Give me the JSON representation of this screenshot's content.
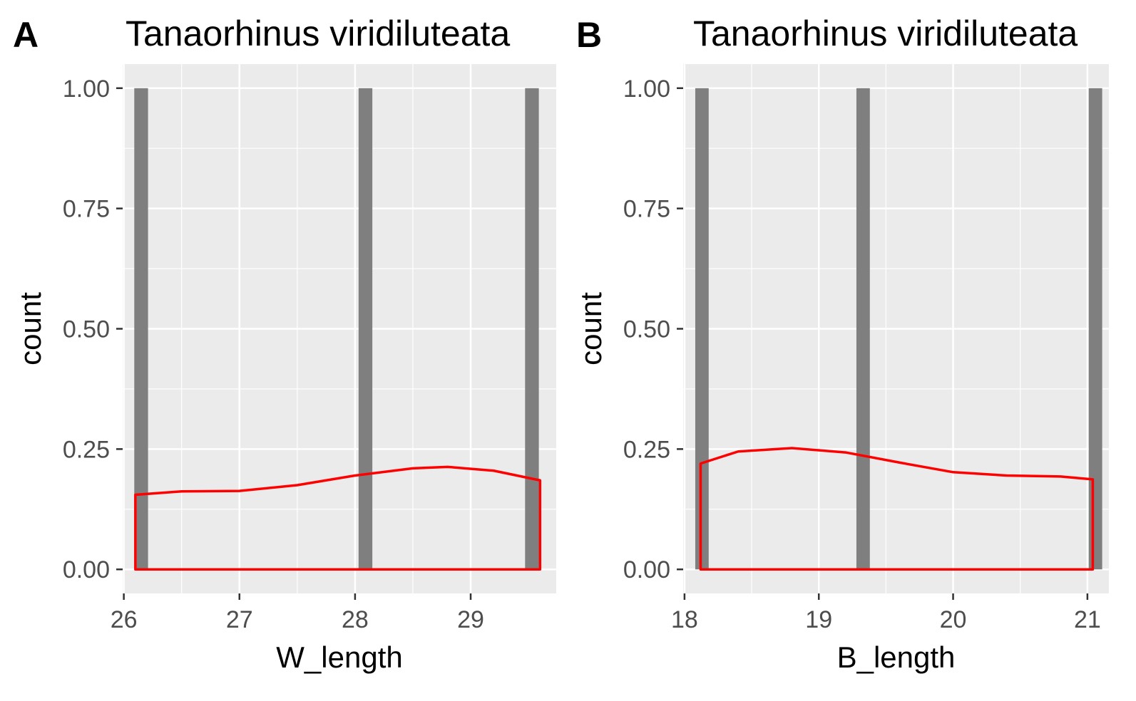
{
  "chart_data": [
    {
      "panel": "A",
      "type": "bar",
      "title": "Tanaorhinus viridiluteata",
      "xlabel": "W_length",
      "ylabel": "count",
      "xlim": [
        25.99,
        29.74
      ],
      "ylim": [
        -0.05,
        1.05
      ],
      "xticks": [
        26,
        27,
        28,
        29
      ],
      "xtick_labels": [
        "26",
        "27",
        "28",
        "29"
      ],
      "yticks": [
        0,
        0.25,
        0.5,
        0.75,
        1
      ],
      "ytick_labels": [
        "0.00",
        "0.25",
        "0.50",
        "0.75",
        "1.00"
      ],
      "bar_width": 0.119,
      "bars": [
        {
          "x": 26.15,
          "count": 1
        },
        {
          "x": 28.09,
          "count": 1
        },
        {
          "x": 29.53,
          "count": 1
        }
      ],
      "density": {
        "x": [
          26.1,
          26.5,
          27.0,
          27.5,
          28.0,
          28.5,
          28.8,
          29.2,
          29.6
        ],
        "y": [
          0.155,
          0.162,
          0.163,
          0.175,
          0.195,
          0.21,
          0.213,
          0.205,
          0.185
        ]
      },
      "bar_color": "#7f7f7f",
      "density_color": "#ff0000",
      "panel_background": "#ebebeb",
      "grid": true
    },
    {
      "panel": "B",
      "type": "bar",
      "title": "Tanaorhinus viridiluteata",
      "xlabel": "B_length",
      "ylabel": "count",
      "xlim": [
        17.99,
        21.16
      ],
      "ylim": [
        -0.05,
        1.05
      ],
      "xticks": [
        18,
        19,
        20,
        21
      ],
      "xtick_labels": [
        "18",
        "19",
        "20",
        "21"
      ],
      "yticks": [
        0,
        0.25,
        0.5,
        0.75,
        1
      ],
      "ytick_labels": [
        "0.00",
        "0.25",
        "0.50",
        "0.75",
        "1.00"
      ],
      "bar_width": 0.1,
      "bars": [
        {
          "x": 18.13,
          "count": 1
        },
        {
          "x": 19.33,
          "count": 1
        },
        {
          "x": 21.06,
          "count": 1
        }
      ],
      "density": {
        "x": [
          18.12,
          18.4,
          18.8,
          19.2,
          19.6,
          20.0,
          20.4,
          20.8,
          21.04
        ],
        "y": [
          0.22,
          0.245,
          0.252,
          0.243,
          0.222,
          0.202,
          0.195,
          0.193,
          0.187
        ]
      },
      "bar_color": "#7f7f7f",
      "density_color": "#ff0000",
      "panel_background": "#ebebeb",
      "grid": true
    }
  ]
}
